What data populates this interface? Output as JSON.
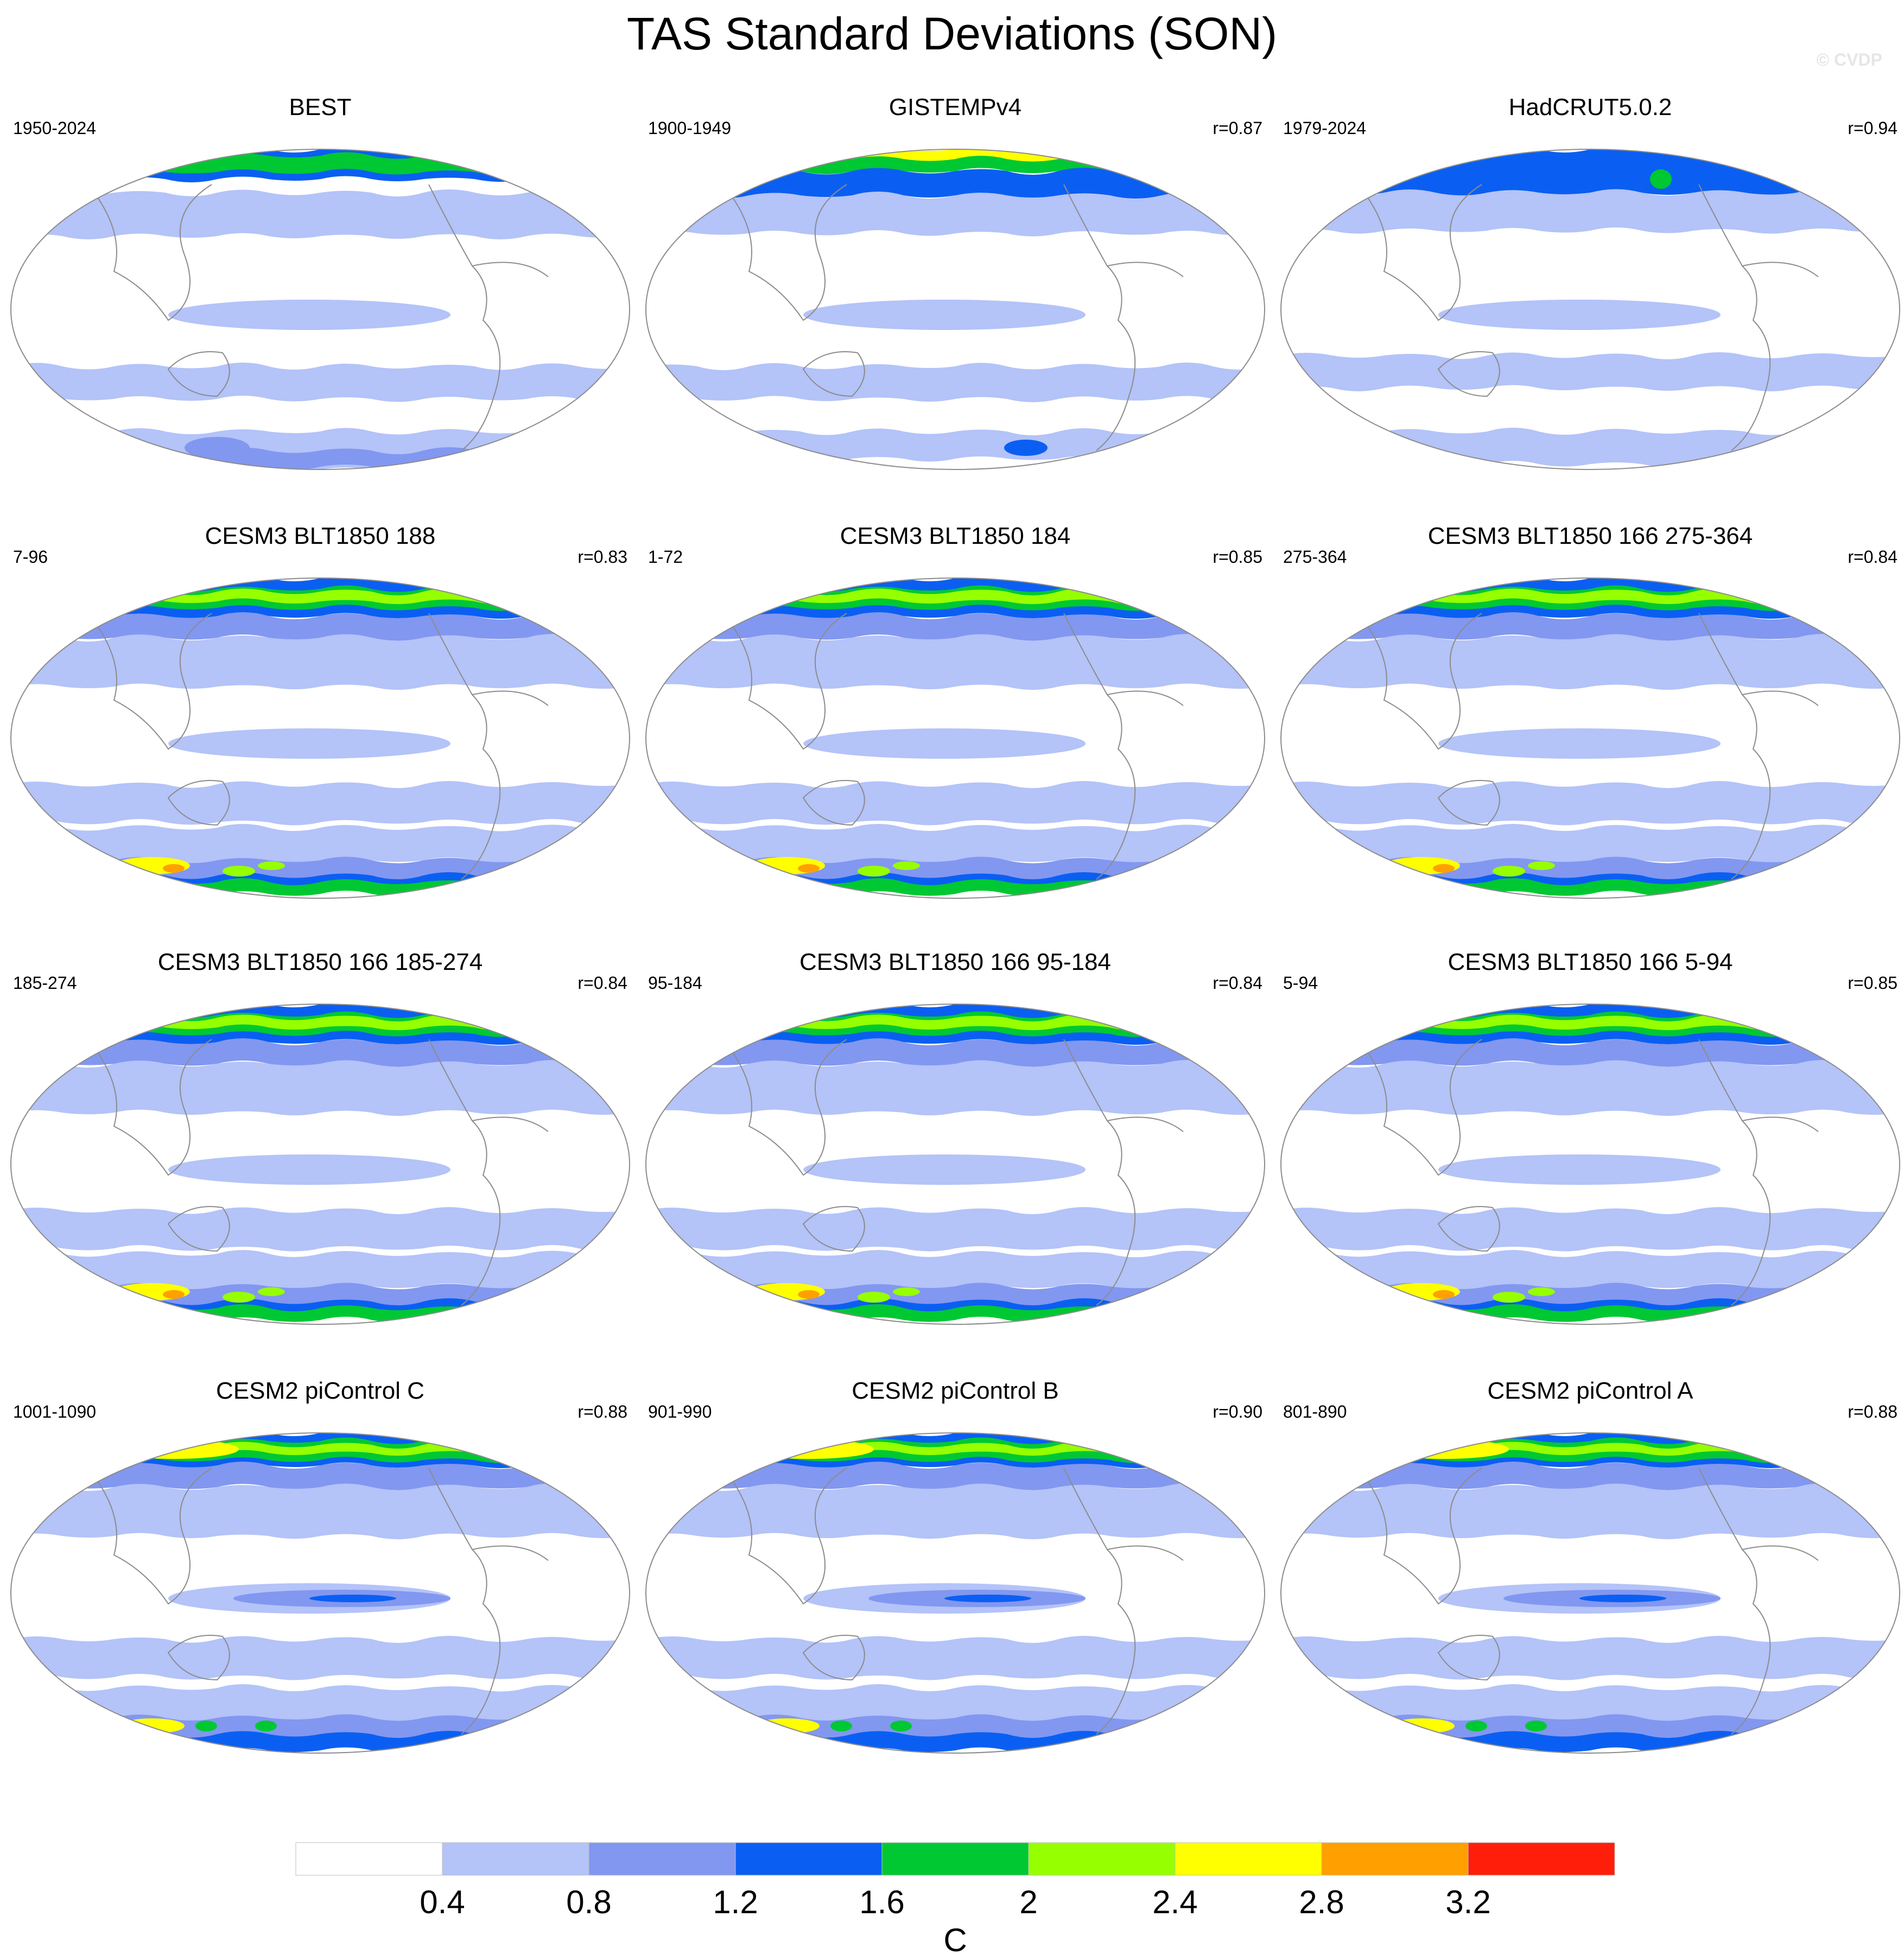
{
  "figure": {
    "title": "TAS Standard Deviations (SON)",
    "credit": "© CVDP"
  },
  "colors": {
    "levels": [
      "#ffffff",
      "#b4c3f8",
      "#8297f0",
      "#0a5ff2",
      "#00c832",
      "#96ff00",
      "#ffff00",
      "#ffa000",
      "#ff1e0a"
    ],
    "outline": "#8c8c8c"
  },
  "chart_data": {
    "type": "map",
    "projection": "Robinson (Pacific-centered)",
    "variable": "TAS standard deviation",
    "season": "SON",
    "colorbar": {
      "thresholds": [
        0.4,
        0.8,
        1.2,
        1.6,
        2,
        2.4,
        2.8,
        3.2
      ],
      "tick_labels": [
        "0.4",
        "0.8",
        "1.2",
        "1.6",
        "2",
        "2.4",
        "2.8",
        "3.2"
      ],
      "units": "C"
    },
    "panels": [
      {
        "title": "BEST",
        "years": "1950-2024",
        "r": "",
        "style": "obs_best"
      },
      {
        "title": "GISTEMPv4",
        "years": "1900-1949",
        "r": "r=0.87",
        "style": "obs_gis"
      },
      {
        "title": "HadCRUT5.0.2",
        "years": "1979-2024",
        "r": "r=0.94",
        "style": "obs_had"
      },
      {
        "title": "CESM3 BLT1850 188",
        "years": "7-96",
        "r": "r=0.83",
        "style": "model3"
      },
      {
        "title": "CESM3 BLT1850 184",
        "years": "1-72",
        "r": "r=0.85",
        "style": "model3"
      },
      {
        "title": "CESM3 BLT1850 166 275-364",
        "years": "275-364",
        "r": "r=0.84",
        "style": "model3"
      },
      {
        "title": "CESM3 BLT1850 166 185-274",
        "years": "185-274",
        "r": "r=0.84",
        "style": "model3"
      },
      {
        "title": "CESM3 BLT1850 166 95-184",
        "years": "95-184",
        "r": "r=0.84",
        "style": "model3"
      },
      {
        "title": "CESM3 BLT1850 166 5-94",
        "years": "5-94",
        "r": "r=0.85",
        "style": "model3"
      },
      {
        "title": "CESM2 piControl C",
        "years": "1001-1090",
        "r": "r=0.88",
        "style": "model2"
      },
      {
        "title": "CESM2 piControl B",
        "years": "901-990",
        "r": "r=0.90",
        "style": "model2"
      },
      {
        "title": "CESM2 piControl A",
        "years": "801-890",
        "r": "r=0.88",
        "style": "model2"
      }
    ]
  }
}
